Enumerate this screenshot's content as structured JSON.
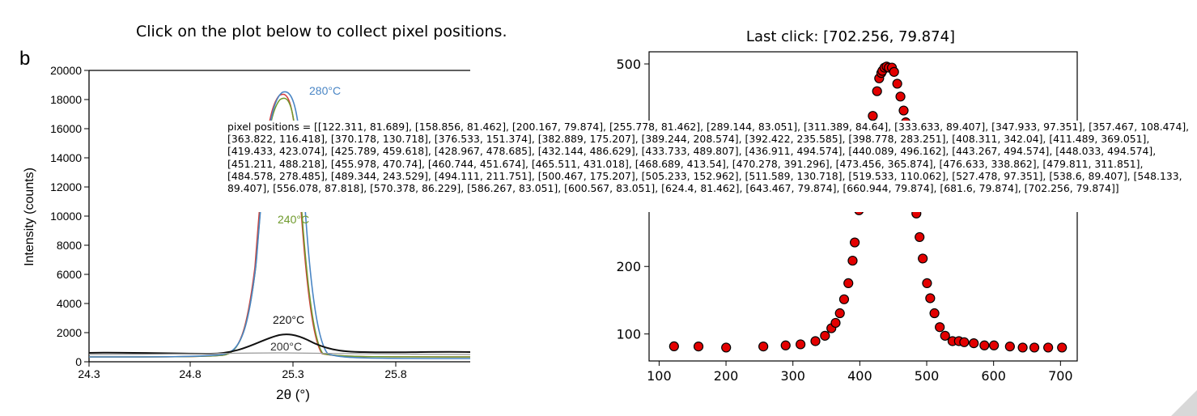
{
  "instruction": "Click on the plot below to collect pixel positions.",
  "left_figure": {
    "panel_label": "b",
    "ylabel": "Intensity (counts)",
    "xlabel": "2θ (°)",
    "y_ticks": [
      "0",
      "2000",
      "4000",
      "6000",
      "8000",
      "10000",
      "12000",
      "14000",
      "16000",
      "18000",
      "20000"
    ],
    "x_ticks": [
      "24.3",
      "24.8",
      "25.3",
      "25.8"
    ],
    "series_labels": [
      {
        "name": "280°C",
        "color": "#4a86c5"
      },
      {
        "name": "240°C",
        "color": "#6f9a2c"
      },
      {
        "name": "220°C",
        "color": "#111111"
      },
      {
        "name": "200°C",
        "color": "#888888"
      }
    ]
  },
  "right_plot": {
    "title": "Last click: [702.256, 79.874]",
    "x_ticks": [
      "100",
      "200",
      "300",
      "400",
      "500",
      "600",
      "700"
    ],
    "y_ticks": [
      "100",
      "200",
      "500"
    ],
    "marker_color": "#e30000"
  },
  "overlay_text": "pixel positions = [[122.311, 81.689], [158.856, 81.462], [200.167, 79.874], [255.778, 81.462], [289.144, 83.051], [311.389, 84.64], [333.633, 89.407], [347.933, 97.351], [357.467, 108.474], [363.822, 116.418], [370.178, 130.718], [376.533, 151.374], [382.889, 175.207], [389.244, 208.574], [392.422, 235.585], [398.778, 283.251], [408.311, 342.04], [411.489, 369.051], [419.433, 423.074], [425.789, 459.618], [428.967, 478.685], [432.144, 486.629], [433.733, 489.807], [436.911, 494.574], [440.089, 496.162], [443.267, 494.574], [448.033, 494.574], [451.211, 488.218], [455.978, 470.74], [460.744, 451.674], [465.511, 431.018], [468.689, 413.54], [470.278, 391.296], [473.456, 365.874], [476.633, 338.862], [479.811, 311.851], [484.578, 278.485], [489.344, 243.529], [494.111, 211.751], [500.467, 175.207], [505.233, 152.962], [511.589, 130.718], [519.533, 110.062], [527.478, 97.351], [538.6, 89.407], [548.133, 89.407], [556.078, 87.818], [570.378, 86.229], [586.267, 83.051], [600.567, 83.051], [624.4, 81.462], [643.467, 79.874], [660.944, 79.874], [681.6, 79.874], [702.256, 79.874]]",
  "chart_data": {
    "type": "scatter",
    "title": "Last click: [702.256, 79.874]",
    "xlim": [
      85,
      725
    ],
    "ylim": [
      60,
      518
    ],
    "x": [
      122.311,
      158.856,
      200.167,
      255.778,
      289.144,
      311.389,
      333.633,
      347.933,
      357.467,
      363.822,
      370.178,
      376.533,
      382.889,
      389.244,
      392.422,
      398.778,
      408.311,
      411.489,
      419.433,
      425.789,
      428.967,
      432.144,
      433.733,
      436.911,
      440.089,
      443.267,
      448.033,
      451.211,
      455.978,
      460.744,
      465.511,
      468.689,
      470.278,
      473.456,
      476.633,
      479.811,
      484.578,
      489.344,
      494.111,
      500.467,
      505.233,
      511.589,
      519.533,
      527.478,
      538.6,
      548.133,
      556.078,
      570.378,
      586.267,
      600.567,
      624.4,
      643.467,
      660.944,
      681.6,
      702.256
    ],
    "y": [
      81.689,
      81.462,
      79.874,
      81.462,
      83.051,
      84.64,
      89.407,
      97.351,
      108.474,
      116.418,
      130.718,
      151.374,
      175.207,
      208.574,
      235.585,
      283.251,
      342.04,
      369.051,
      423.074,
      459.618,
      478.685,
      486.629,
      489.807,
      494.574,
      496.162,
      494.574,
      494.574,
      488.218,
      470.74,
      451.674,
      431.018,
      413.54,
      391.296,
      365.874,
      338.862,
      311.851,
      278.485,
      243.529,
      211.751,
      175.207,
      152.962,
      130.718,
      110.062,
      97.351,
      89.407,
      89.407,
      87.818,
      86.229,
      83.051,
      83.051,
      81.462,
      79.874,
      79.874,
      79.874,
      79.874
    ]
  }
}
